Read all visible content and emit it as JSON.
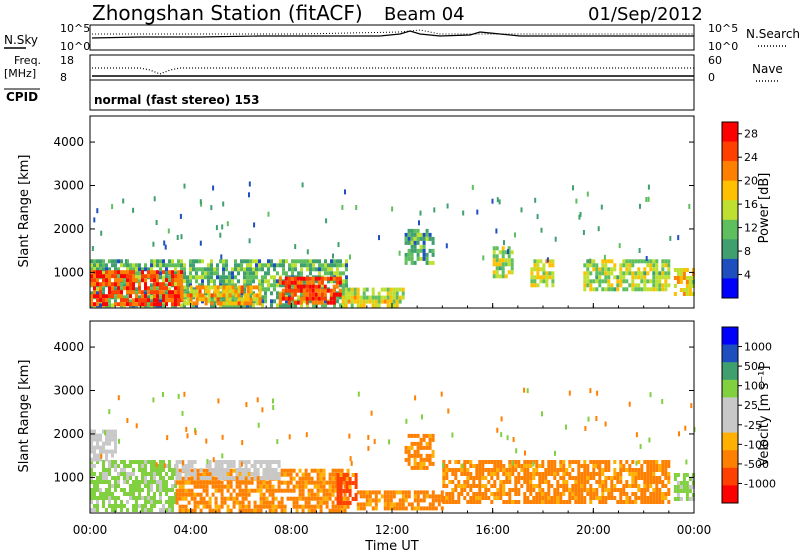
{
  "header": {
    "station": "Zhongshan Station (fitACF)",
    "beam": "Beam 04",
    "date": "01/Sep/2012"
  },
  "panel_labels": {
    "nsky": "N.Sky",
    "nsearch": "N.Search",
    "freq_line1": "Freq.",
    "freq_line2": "[MHz]",
    "nave": "Nave",
    "cpid": "CPID",
    "cpid_value": "normal (fast stereo) 153"
  },
  "noise_axis": {
    "left_top": "10^5",
    "left_bottom": "10^0",
    "right_top": "10^5",
    "right_bottom": "10^0"
  },
  "freq_axis": {
    "left_top": "18",
    "left_bottom": "8",
    "right_top": "60",
    "right_bottom": "0"
  },
  "colors": {
    "power_scale": [
      "#0000ff",
      "#1f4fbf",
      "#3f9f6f",
      "#5fbf5f",
      "#bfe030",
      "#ffc000",
      "#ff8000",
      "#ff4000",
      "#ff0000"
    ],
    "velocity_scale": [
      "#ff0000",
      "#ff4000",
      "#ff8000",
      "#ffb000",
      "#c8c8c8",
      "#c8c8c8",
      "#80d040",
      "#3f9f6f",
      "#1f4fbf",
      "#0000ff"
    ]
  },
  "chart_data": [
    {
      "type": "heatmap",
      "name": "power",
      "title": "",
      "xlabel": "Time UT",
      "ylabel": "Slant Range [km]",
      "x_ticks": [
        "00:00",
        "04:00",
        "08:00",
        "12:00",
        "16:00",
        "20:00",
        "00:00"
      ],
      "xlim_hours": [
        0,
        24
      ],
      "y_ticks": [
        1000,
        2000,
        3000,
        4000
      ],
      "ylim": [
        180,
        4600
      ],
      "colorbar": {
        "label": "Power [dB]",
        "ticks": [
          4,
          8,
          12,
          16,
          20,
          24,
          28
        ],
        "range": [
          0,
          30
        ]
      },
      "echo_regions": [
        {
          "t": [
            0.0,
            10.2
          ],
          "r": [
            220,
            1300
          ],
          "value": 10
        },
        {
          "t": [
            0.0,
            3.6
          ],
          "r": [
            300,
            1050
          ],
          "value": 26
        },
        {
          "t": [
            3.6,
            6.8
          ],
          "r": [
            300,
            700
          ],
          "value": 20
        },
        {
          "t": [
            7.5,
            10.0
          ],
          "r": [
            300,
            900
          ],
          "value": 26
        },
        {
          "t": [
            10.0,
            12.5
          ],
          "r": [
            250,
            650
          ],
          "value": 16
        },
        {
          "t": [
            12.5,
            13.6
          ],
          "r": [
            1200,
            2000
          ],
          "value": 10
        },
        {
          "t": [
            16.0,
            16.8
          ],
          "r": [
            900,
            1600
          ],
          "value": 14
        },
        {
          "t": [
            17.5,
            18.4
          ],
          "r": [
            700,
            1300
          ],
          "value": 16
        },
        {
          "t": [
            19.6,
            23.0
          ],
          "r": [
            600,
            1300
          ],
          "value": 14
        },
        {
          "t": [
            23.2,
            24.0
          ],
          "r": [
            500,
            1100
          ],
          "value": 18
        }
      ]
    },
    {
      "type": "heatmap",
      "name": "velocity",
      "title": "",
      "xlabel": "Time UT",
      "ylabel": "Slant Range [km]",
      "x_ticks": [
        "00:00",
        "04:00",
        "08:00",
        "12:00",
        "16:00",
        "20:00",
        "00:00"
      ],
      "xlim_hours": [
        0,
        24
      ],
      "y_ticks": [
        1000,
        2000,
        3000,
        4000
      ],
      "ylim": [
        180,
        4600
      ],
      "colorbar": {
        "label": "Velocity [m s⁻¹]",
        "ticks": [
          "1000",
          "500",
          "100",
          "25",
          "-25",
          "-100",
          "-500",
          "-1000"
        ]
      },
      "echo_regions": [
        {
          "t": [
            0.0,
            3.4
          ],
          "r": [
            250,
            1400
          ],
          "value": 100
        },
        {
          "t": [
            0.0,
            1.0
          ],
          "r": [
            1400,
            2100
          ],
          "value": 25
        },
        {
          "t": [
            3.4,
            10.2
          ],
          "r": [
            250,
            1200
          ],
          "value": -100
        },
        {
          "t": [
            3.4,
            7.5
          ],
          "r": [
            1000,
            1400
          ],
          "value": 25
        },
        {
          "t": [
            9.8,
            10.6
          ],
          "r": [
            400,
            1100
          ],
          "value": -500
        },
        {
          "t": [
            10.6,
            14.0
          ],
          "r": [
            250,
            700
          ],
          "value": -100
        },
        {
          "t": [
            12.5,
            13.6
          ],
          "r": [
            1200,
            2000
          ],
          "value": -100
        },
        {
          "t": [
            14.0,
            23.0
          ],
          "r": [
            400,
            1400
          ],
          "value": -100
        },
        {
          "t": [
            23.2,
            24.0
          ],
          "r": [
            500,
            1100
          ],
          "value": 100
        }
      ]
    }
  ]
}
